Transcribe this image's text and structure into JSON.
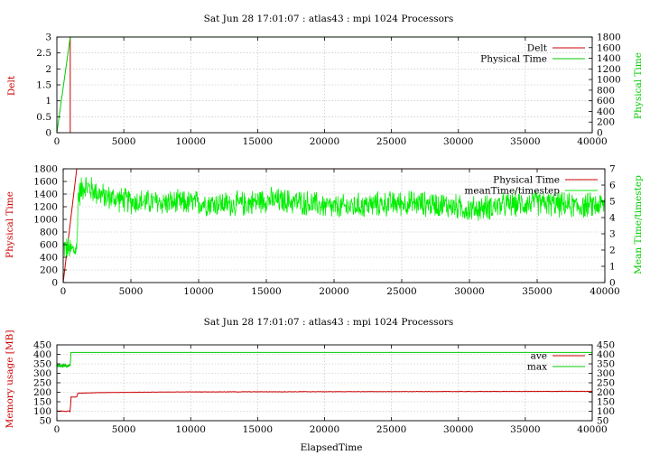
{
  "chart_data": [
    {
      "type": "line",
      "title": "Sat Jun 28 17:01:07 : atlas43 : mpi 1024 Processors",
      "xlabel": "",
      "ylabel": "Delt",
      "y2label": "Physical Time",
      "xlim": [
        0,
        40000
      ],
      "ylim": [
        0,
        3
      ],
      "y2lim": [
        0,
        1800
      ],
      "xticks": [
        0,
        5000,
        10000,
        15000,
        20000,
        25000,
        30000,
        35000,
        40000
      ],
      "yticks": [
        0,
        0.5,
        1,
        1.5,
        2,
        2.5,
        3
      ],
      "y2ticks": [
        0,
        200,
        400,
        600,
        800,
        1000,
        1200,
        1400,
        1600,
        1800
      ],
      "grid": true,
      "legend_position": "top-right",
      "series": [
        {
          "name": "Delt",
          "color": "#cc0000",
          "axis": "y",
          "x": [
            1000,
            1000,
            40000
          ],
          "y": [
            0,
            3.0,
            3.0
          ]
        },
        {
          "name": "Physical Time",
          "color": "#00cc00",
          "axis": "y2",
          "x": [
            0,
            1000,
            1200,
            40000
          ],
          "y": [
            0,
            1800,
            1800,
            1800
          ]
        }
      ]
    },
    {
      "type": "line",
      "title": "",
      "xlabel": "",
      "ylabel": "Physical Time",
      "y2label": "Mean Time/timestep",
      "xlim": [
        0,
        40000
      ],
      "ylim": [
        0,
        1800
      ],
      "y2lim": [
        0,
        7
      ],
      "xticks": [
        0,
        5000,
        10000,
        15000,
        20000,
        25000,
        30000,
        35000,
        40000
      ],
      "yticks": [
        0,
        200,
        400,
        600,
        800,
        1000,
        1200,
        1400,
        1600,
        1800
      ],
      "y2ticks": [
        0,
        1,
        2,
        3,
        4,
        5,
        6,
        7
      ],
      "grid": true,
      "legend_position": "top-right",
      "series": [
        {
          "name": "Physical Time",
          "color": "#cc0000",
          "axis": "y",
          "x": [
            0,
            1000,
            40000
          ],
          "y": [
            0,
            1800,
            1800
          ]
        },
        {
          "name": "meanTime/timestep",
          "color": "#00ee00",
          "axis": "y2",
          "noisy": true,
          "x": [
            0,
            500,
            1000,
            1100,
            1500,
            3000,
            5000,
            8000,
            10000,
            13000,
            15000,
            18000,
            20000,
            23000,
            25000,
            28000,
            30000,
            33000,
            35000,
            38000,
            40000
          ],
          "y": [
            2.2,
            2.0,
            2.0,
            5.3,
            6.0,
            5.3,
            5.0,
            4.9,
            4.9,
            4.8,
            5.1,
            4.9,
            4.6,
            4.8,
            4.9,
            4.8,
            4.5,
            4.8,
            4.9,
            4.7,
            4.8
          ],
          "spread": [
            0.9,
            0.9,
            0.9,
            1.0,
            1.0,
            0.9,
            0.9,
            0.9,
            0.9,
            0.9,
            0.9,
            0.9,
            0.9,
            0.9,
            0.9,
            0.9,
            0.9,
            0.9,
            0.9,
            0.9,
            0.9
          ]
        }
      ]
    },
    {
      "type": "line",
      "title": "Sat Jun 28 17:01:07 : atlas43 : mpi 1024 Processors",
      "xlabel": "ElapsedTime",
      "ylabel": "Memory usage [MB]",
      "y2label": "",
      "xlim": [
        0,
        40000
      ],
      "ylim": [
        50,
        450
      ],
      "y2lim": [
        50,
        450
      ],
      "xticks": [
        0,
        5000,
        10000,
        15000,
        20000,
        25000,
        30000,
        35000,
        40000
      ],
      "yticks": [
        50,
        100,
        150,
        200,
        250,
        300,
        350,
        400,
        450
      ],
      "y2ticks": [
        50,
        100,
        150,
        200,
        250,
        300,
        350,
        400,
        450
      ],
      "grid": true,
      "legend_position": "top-right",
      "series": [
        {
          "name": "ave",
          "color": "#cc0000",
          "axis": "y",
          "x": [
            0,
            1000,
            1050,
            1500,
            1550,
            3000,
            6000,
            10000,
            20000,
            40000
          ],
          "y": [
            100,
            100,
            175,
            175,
            195,
            198,
            200,
            202,
            203,
            205
          ]
        },
        {
          "name": "max",
          "color": "#00cc00",
          "axis": "y",
          "noisy_until": 1000,
          "x": [
            0,
            1000,
            1050,
            40000
          ],
          "y": [
            340,
            340,
            410,
            410
          ]
        }
      ]
    }
  ]
}
